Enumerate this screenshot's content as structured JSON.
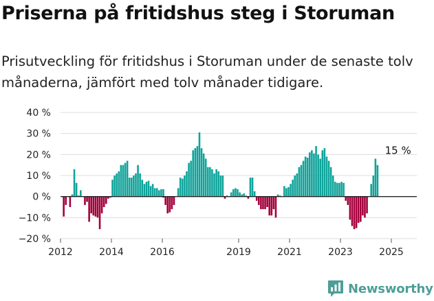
{
  "title": "Priserna på fritidshus steg i Storuman",
  "subtitle": "Prisutveckling för fritidshus i Storuman under de senaste tolv månaderna, jämfört med tolv månader tidigare.",
  "brand": {
    "name": "Newsworthy",
    "color": "#4d9e97",
    "icon": "bar-chart-bubble-icon"
  },
  "chart_data": {
    "type": "bar",
    "x_start": "2012-01",
    "x_end": "2025-12",
    "ylim": [
      -20,
      40
    ],
    "y_ticks": [
      -20,
      -10,
      0,
      10,
      20,
      30,
      40
    ],
    "y_tick_labels": [
      "−20 %",
      "−10 %",
      "0 %",
      "10 %",
      "20 %",
      "30 %",
      "40 %"
    ],
    "x_tick_years": [
      2012,
      2014,
      2016,
      2019,
      2021,
      2023,
      2025
    ],
    "grid": true,
    "colors": {
      "positive": "#0fa39a",
      "negative": "#a3003b"
    },
    "annotation": {
      "text": "15 %",
      "month": "2025-03"
    },
    "series": [
      {
        "start": "2012-02",
        "values": [
          -9.5,
          -4,
          0,
          -5,
          1,
          13,
          6.5,
          0.5,
          3,
          0,
          -4,
          -2.5,
          -12,
          -8,
          -9,
          -9.5,
          -10,
          -15.5,
          -8,
          -5,
          -3.5,
          -1,
          -0.5,
          8,
          10,
          11,
          12,
          15,
          15,
          16,
          17,
          9,
          9,
          10,
          11,
          15,
          11,
          8,
          6,
          7,
          7.5,
          5,
          6,
          4,
          4,
          3,
          3.5,
          3.5
        ]
      },
      {
        "start": "2016-01",
        "values": [
          -0.5,
          -4,
          -8,
          -7.5,
          -6,
          -4
        ]
      },
      {
        "start": "2016-08",
        "values": [
          4,
          9,
          8.5,
          10,
          12,
          16,
          17,
          22,
          23,
          24,
          30.5,
          23,
          20.5,
          18,
          14,
          14,
          13,
          11,
          13,
          12,
          10,
          10
        ]
      },
      {
        "start": "2018-06",
        "values": [
          -1,
          0.5,
          0,
          2,
          3.5,
          4,
          3.5,
          2,
          1,
          1.5,
          0.5,
          -1,
          9,
          9,
          2.5,
          -2,
          -4,
          -6,
          -6,
          -6,
          -5,
          -9,
          -9,
          -6,
          -10,
          1
        ]
      },
      {
        "start": "2020-08",
        "values": [
          0.5,
          0,
          5,
          4,
          4.5,
          6,
          8,
          10,
          11,
          14,
          15,
          17,
          19,
          18.5,
          21,
          22,
          20.5,
          24,
          20,
          18,
          22,
          23,
          19,
          17,
          14,
          10,
          7,
          6.5,
          6.5,
          7,
          6.5
        ]
      },
      {
        "start": "2023-03",
        "values": [
          -2,
          -4,
          -11,
          -14,
          -15.5,
          -15,
          -12.5,
          -12,
          -9,
          -10,
          -8,
          0,
          6,
          10,
          18,
          15
        ]
      }
    ]
  }
}
